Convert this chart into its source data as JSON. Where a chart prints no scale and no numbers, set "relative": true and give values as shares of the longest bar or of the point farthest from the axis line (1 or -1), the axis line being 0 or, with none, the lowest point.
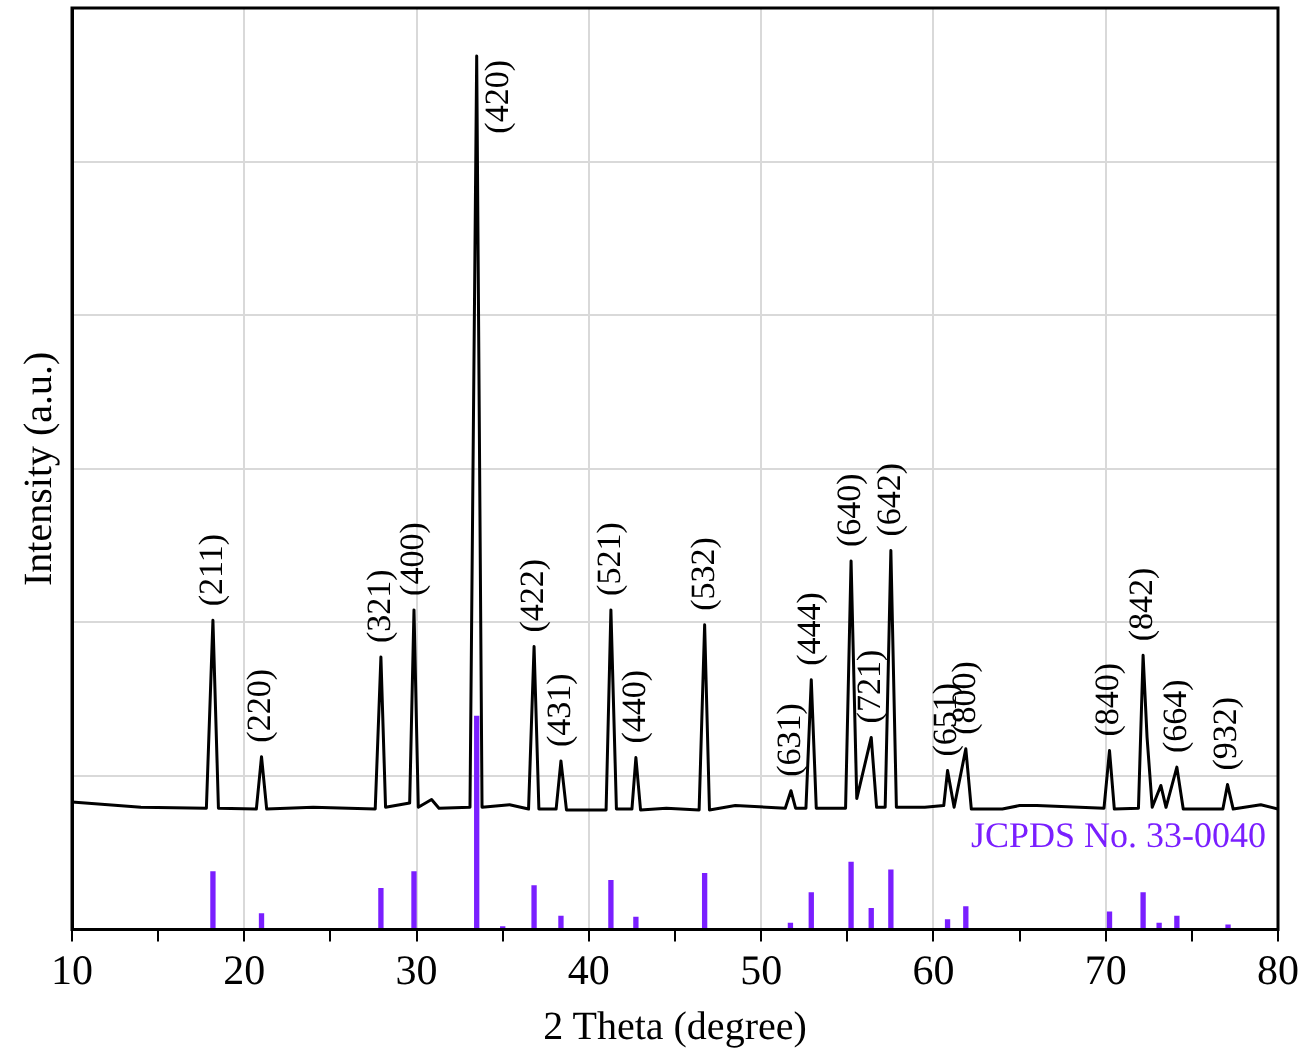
{
  "chart_data": {
    "type": "line",
    "xlabel": "2 Theta (degree)",
    "ylabel": "Intensity (a.u.)",
    "relative": true,
    "xlim": [
      10,
      80
    ],
    "xticks": [
      10,
      {
        "value": 15,
        "label": null
      },
      20,
      {
        "value": 25,
        "label": null
      },
      30,
      {
        "value": 35,
        "label": null
      },
      40,
      {
        "value": 45,
        "label": null
      },
      50,
      {
        "value": 55,
        "label": null
      },
      60,
      {
        "value": 65,
        "label": null
      },
      70,
      {
        "value": 75,
        "label": null
      },
      80
    ],
    "grid": true,
    "legend": false,
    "marker": "none",
    "line_style": "solid",
    "series": [
      {
        "color": "#000000",
        "x": [
          10,
          14,
          17.8,
          18.18,
          18.5,
          20.7,
          21.0,
          21.3,
          24,
          27.6,
          27.93,
          28.2,
          29.6,
          29.85,
          30.1,
          30.87,
          31.3,
          33.1,
          33.49,
          33.8,
          35.4,
          36.5,
          36.82,
          37.1,
          38.1,
          38.38,
          38.7,
          41.0,
          41.28,
          41.6,
          42.5,
          42.73,
          43.0,
          44.5,
          46.4,
          46.72,
          47.0,
          48.5,
          51.4,
          51.73,
          52.0,
          52.6,
          52.91,
          53.2,
          54.9,
          55.22,
          55.55,
          56.39,
          56.7,
          57.2,
          57.53,
          57.85,
          59.5,
          60.6,
          60.82,
          61.2,
          61.88,
          62.2,
          64,
          65.0,
          66.0,
          69.9,
          70.22,
          70.5,
          71.9,
          72.17,
          72.4,
          72.7,
          73.2,
          73.5,
          74.13,
          74.5,
          76.8,
          77.07,
          77.4,
          79.0,
          80
        ],
        "values": [
          0.146,
          0.14,
          0.139,
          0.354,
          0.139,
          0.138,
          0.198,
          0.138,
          0.14,
          0.138,
          0.312,
          0.14,
          0.145,
          0.366,
          0.14,
          0.149,
          0.139,
          0.14,
          1.0,
          0.14,
          0.143,
          0.138,
          0.324,
          0.138,
          0.138,
          0.193,
          0.137,
          0.137,
          0.366,
          0.138,
          0.138,
          0.197,
          0.137,
          0.139,
          0.137,
          0.349,
          0.137,
          0.142,
          0.139,
          0.159,
          0.139,
          0.139,
          0.286,
          0.139,
          0.139,
          0.422,
          0.15,
          0.22,
          0.14,
          0.14,
          0.434,
          0.14,
          0.14,
          0.142,
          0.182,
          0.14,
          0.207,
          0.138,
          0.138,
          0.142,
          0.142,
          0.139,
          0.205,
          0.138,
          0.139,
          0.314,
          0.22,
          0.14,
          0.165,
          0.14,
          0.186,
          0.138,
          0.138,
          0.166,
          0.138,
          0.143,
          0.138
        ]
      },
      {
        "type": "bar",
        "color": "#7a1fff",
        "x": [
          18.18,
          21.0,
          27.93,
          29.85,
          33.49,
          35.0,
          36.82,
          38.38,
          41.28,
          42.73,
          46.72,
          51.7,
          52.91,
          55.22,
          56.39,
          57.53,
          60.82,
          61.88,
          70.22,
          72.17,
          73.1,
          74.13,
          77.1
        ],
        "values": [
          0.066,
          0.018,
          0.047,
          0.066,
          0.244,
          0.003,
          0.05,
          0.015,
          0.056,
          0.014,
          0.064,
          0.007,
          0.042,
          0.077,
          0.024,
          0.068,
          0.011,
          0.026,
          0.02,
          0.042,
          0.007,
          0.015,
          0.005
        ]
      }
    ],
    "annotations": [
      {
        "text": "(211)",
        "x": 18.18,
        "y": 0.354
      },
      {
        "text": "(220)",
        "x": 21.0,
        "y": 0.198
      },
      {
        "text": "(321)",
        "x": 27.93,
        "y": 0.312
      },
      {
        "text": "(400)",
        "x": 29.85,
        "y": 0.366
      },
      {
        "text": "(420)",
        "x": 33.49,
        "y": 1.0
      },
      {
        "text": "(422)",
        "x": 36.82,
        "y": 0.324
      },
      {
        "text": "(431)",
        "x": 38.38,
        "y": 0.193
      },
      {
        "text": "(521)",
        "x": 41.28,
        "y": 0.366
      },
      {
        "text": "(440)",
        "x": 42.73,
        "y": 0.197
      },
      {
        "text": "(532)",
        "x": 46.72,
        "y": 0.349
      },
      {
        "text": "(631)",
        "x": 51.73,
        "y": 0.159
      },
      {
        "text": "(444)",
        "x": 52.91,
        "y": 0.286
      },
      {
        "text": "(640)",
        "x": 55.22,
        "y": 0.422
      },
      {
        "text": "(721)",
        "x": 56.39,
        "y": 0.22
      },
      {
        "text": "(642)",
        "x": 57.53,
        "y": 0.434
      },
      {
        "text": "(651)",
        "x": 60.82,
        "y": 0.182
      },
      {
        "text": "(800)",
        "x": 61.88,
        "y": 0.207
      },
      {
        "text": "(840)",
        "x": 70.22,
        "y": 0.205
      },
      {
        "text": "(842)",
        "x": 72.17,
        "y": 0.314
      },
      {
        "text": "(664)",
        "x": 74.13,
        "y": 0.186
      },
      {
        "text": "(932)",
        "x": 77.07,
        "y": 0.166
      },
      "JCPDS No. 33-0040"
    ]
  }
}
